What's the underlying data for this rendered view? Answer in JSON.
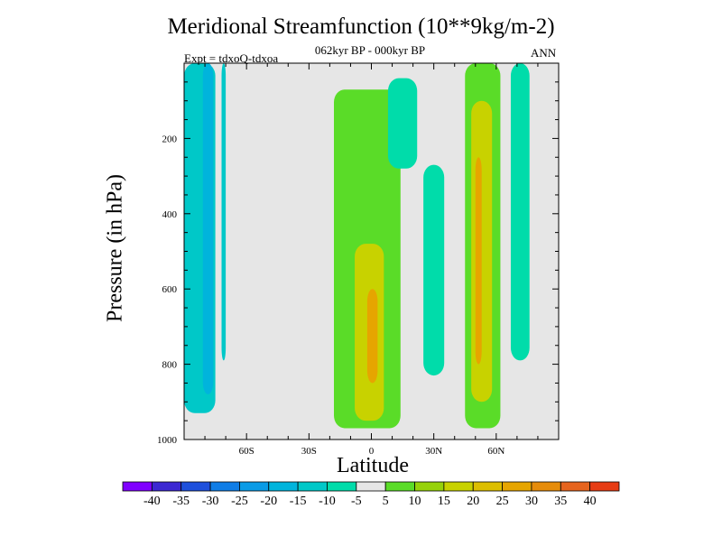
{
  "colors": {
    "background": "#e6e6e6",
    "axis": "#000000",
    "levels": [
      "#8000ff",
      "#3c28d2",
      "#1e50dc",
      "#0f7de6",
      "#0a9be6",
      "#00b4dc",
      "#00c8c8",
      "#00dcaa",
      "#e6e6e6",
      "#5adc28",
      "#96d20a",
      "#c8d200",
      "#dcbe00",
      "#e6a500",
      "#e68c0a",
      "#e6641e",
      "#e63c14"
    ]
  },
  "chart_data": {
    "type": "heatmap",
    "title": "Meridional Streamfunction (10**9kg/m-2)",
    "subtitle": "062kyr BP - 000kyr BP",
    "left_label": "Expt = tdxoQ-tdxoa",
    "right_label": "ANN",
    "xlabel": "Latitude",
    "ylabel": "Pressure (in hPa)",
    "xlim": [
      -90,
      90
    ],
    "ylim": [
      1000,
      0
    ],
    "xticks": [
      -60,
      -30,
      0,
      30,
      60
    ],
    "xtick_labels": [
      "60S",
      "30S",
      "0",
      "30N",
      "60N"
    ],
    "yticks": [
      200,
      400,
      600,
      800,
      1000
    ],
    "ytick_labels": [
      "200",
      "400",
      "600",
      "800",
      "1000"
    ],
    "colorbar_labels": [
      "-40",
      "-35",
      "-30",
      "-25",
      "-20",
      "-15",
      "-10",
      "-5",
      "5",
      "10",
      "15",
      "20",
      "25",
      "30",
      "35",
      "40"
    ],
    "contour_levels": [
      -40,
      -35,
      -30,
      -25,
      -20,
      -15,
      -10,
      -5,
      5,
      10,
      15,
      20,
      25,
      30,
      35,
      40
    ],
    "regions": [
      {
        "name": "sh-negative-cell",
        "level": "-10",
        "lat": [
          -90,
          -75
        ],
        "p": [
          0,
          930
        ]
      },
      {
        "name": "sh-negative-core",
        "level": "-15",
        "lat": [
          -81,
          -76
        ],
        "p": [
          0,
          880
        ]
      },
      {
        "name": "sh-negative-strip",
        "level": "-10",
        "lat": [
          -72,
          -70
        ],
        "p": [
          0,
          790
        ]
      },
      {
        "name": "tropical-positive-cell",
        "level": "5",
        "lat": [
          -18,
          14
        ],
        "p": [
          70,
          970
        ]
      },
      {
        "name": "tropical-positive-core",
        "level": "15",
        "lat": [
          -8,
          6
        ],
        "p": [
          480,
          950
        ]
      },
      {
        "name": "tropical-positive-max",
        "level": "25",
        "lat": [
          -2,
          3
        ],
        "p": [
          600,
          850
        ]
      },
      {
        "name": "tropical-upper-negative",
        "level": "-5",
        "lat": [
          8,
          22
        ],
        "p": [
          40,
          280
        ]
      },
      {
        "name": "nh-negative-cell",
        "level": "-5",
        "lat": [
          25,
          35
        ],
        "p": [
          270,
          830
        ]
      },
      {
        "name": "nh-positive-cell",
        "level": "5",
        "lat": [
          45,
          62
        ],
        "p": [
          0,
          970
        ]
      },
      {
        "name": "nh-positive-core",
        "level": "15",
        "lat": [
          48,
          58
        ],
        "p": [
          100,
          900
        ]
      },
      {
        "name": "nh-positive-max",
        "level": "25",
        "lat": [
          50,
          53
        ],
        "p": [
          250,
          800
        ]
      },
      {
        "name": "nh-high-lat-negative",
        "level": "-5",
        "lat": [
          67,
          76
        ],
        "p": [
          0,
          790
        ]
      }
    ]
  }
}
